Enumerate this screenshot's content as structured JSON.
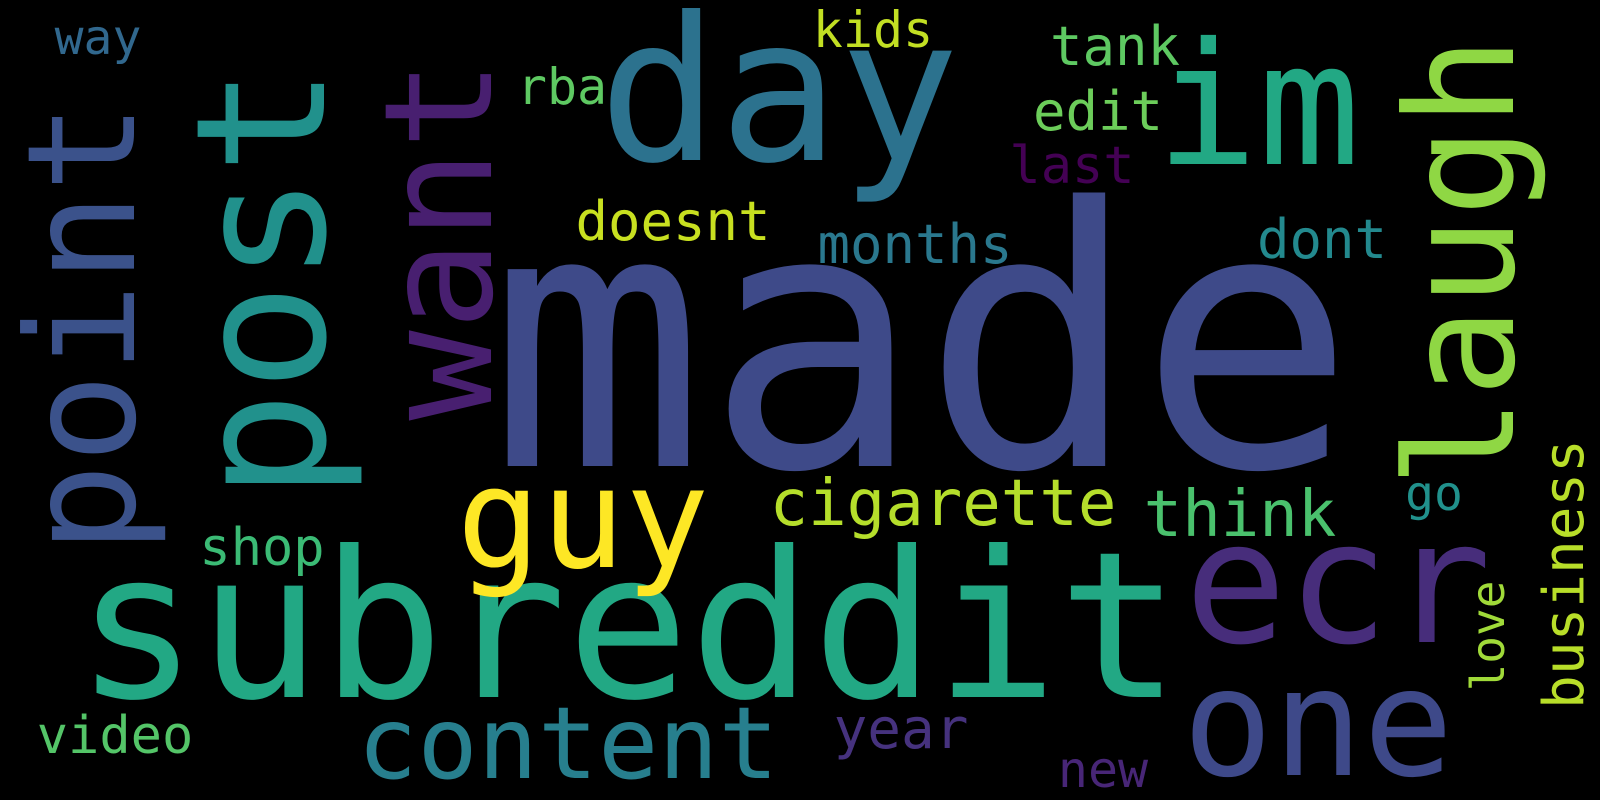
{
  "word_cloud": {
    "background": "#000000",
    "words": [
      {
        "text": "made",
        "color": "#3e4a89",
        "orientation": "horizontal"
      },
      {
        "text": "subreddit",
        "color": "#22a884",
        "orientation": "horizontal"
      },
      {
        "text": "post",
        "color": "#21918c",
        "orientation": "vertical"
      },
      {
        "text": "day",
        "color": "#2c728e",
        "orientation": "horizontal"
      },
      {
        "text": "point",
        "color": "#3b528b",
        "orientation": "vertical"
      },
      {
        "text": "want",
        "color": "#481f70",
        "orientation": "vertical"
      },
      {
        "text": "laugh",
        "color": "#8fd744",
        "orientation": "vertical"
      },
      {
        "text": "im",
        "color": "#22a884",
        "orientation": "horizontal"
      },
      {
        "text": "ecr",
        "color": "#472d7b",
        "orientation": "horizontal"
      },
      {
        "text": "one",
        "color": "#3e4989",
        "orientation": "horizontal"
      },
      {
        "text": "guy",
        "color": "#fde725",
        "orientation": "horizontal"
      },
      {
        "text": "content",
        "color": "#277f8e",
        "orientation": "horizontal"
      },
      {
        "text": "cigarette",
        "color": "#b5de2b",
        "orientation": "horizontal"
      },
      {
        "text": "think",
        "color": "#4ac16d",
        "orientation": "horizontal"
      },
      {
        "text": "doesnt",
        "color": "#c8e020",
        "orientation": "horizontal"
      },
      {
        "text": "months",
        "color": "#2a788e",
        "orientation": "horizontal"
      },
      {
        "text": "dont",
        "color": "#23898e",
        "orientation": "horizontal"
      },
      {
        "text": "business",
        "color": "#b8de29",
        "orientation": "vertical"
      },
      {
        "text": "tank",
        "color": "#5ec962",
        "orientation": "horizontal"
      },
      {
        "text": "edit",
        "color": "#6ccd5a",
        "orientation": "horizontal"
      },
      {
        "text": "kids",
        "color": "#c2df23",
        "orientation": "horizontal"
      },
      {
        "text": "last",
        "color": "#440154",
        "orientation": "horizontal"
      },
      {
        "text": "rba",
        "color": "#5ec962",
        "orientation": "horizontal"
      },
      {
        "text": "way",
        "color": "#31688e",
        "orientation": "horizontal"
      },
      {
        "text": "shop",
        "color": "#3bbb75",
        "orientation": "horizontal"
      },
      {
        "text": "video",
        "color": "#54c568",
        "orientation": "horizontal"
      },
      {
        "text": "year",
        "color": "#46327e",
        "orientation": "horizontal"
      },
      {
        "text": "new",
        "color": "#482677",
        "orientation": "horizontal"
      },
      {
        "text": "go",
        "color": "#21918c",
        "orientation": "horizontal"
      },
      {
        "text": "love",
        "color": "#a0da39",
        "orientation": "vertical"
      }
    ]
  }
}
